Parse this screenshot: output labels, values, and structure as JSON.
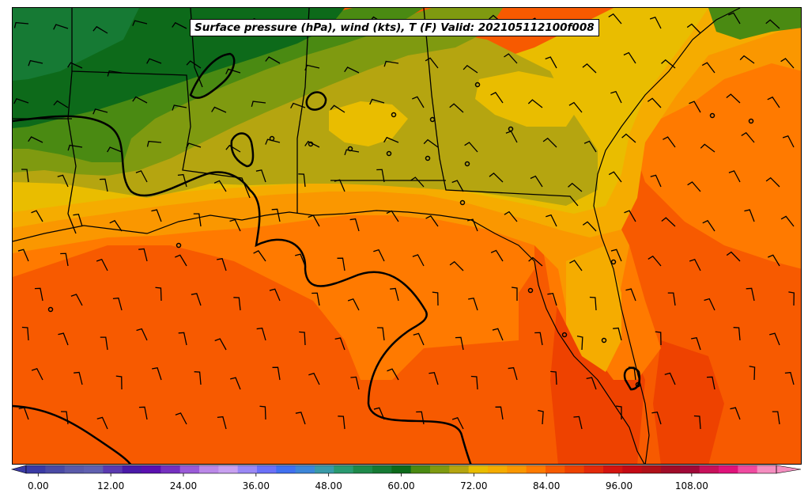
{
  "title": "Surface pressure (hPa), wind (kts), T (F) Valid: 2021051121OOf008",
  "colorbar": {
    "min": -2,
    "max": 122,
    "step": 3,
    "tick_values": [
      0,
      12,
      24,
      36,
      48,
      60,
      72,
      84,
      96,
      108
    ],
    "tick_labels": [
      "0.00",
      "12.00",
      "24.00",
      "36.00",
      "48.00",
      "60.00",
      "72.00",
      "84.00",
      "96.00",
      "108.00"
    ],
    "colors": [
      "#3a3aa5",
      "#4a4aa5",
      "#5a5aaa",
      "#6060b0",
      "#5a3ab0",
      "#4a1aa8",
      "#5a10b0",
      "#7530c0",
      "#9a5ad8",
      "#bb88e8",
      "#c8a0f0",
      "#9a88f5",
      "#6b70f8",
      "#4070f0",
      "#3d86d8",
      "#3a9aa8",
      "#2a9a70",
      "#1e8a4a",
      "#167a34",
      "#0d6a1a",
      "#4a8a12",
      "#7f9a10",
      "#b5a510",
      "#e9bd00",
      "#f5ac00",
      "#fa9700",
      "#ff7a00",
      "#f75a00",
      "#ee4200",
      "#e32a0a",
      "#d41410",
      "#c40a14",
      "#b01018",
      "#a00c28",
      "#a00838",
      "#c8105a",
      "#e0127a",
      "#f04aa0",
      "#f58ec0"
    ]
  },
  "map": {
    "field": "surface temperature (F)",
    "temperature_band_colors": {
      "gt_90": "#f75a00",
      "87_90": "#ff7a00",
      "84_87": "#fa9700",
      "81_84": "#f5ac00",
      "78_81": "#e9bd00",
      "75_78": "#b5a510",
      "72_75": "#7f9a10",
      "69_72": "#4a8a12",
      "lt_69": "#0d6a1a"
    },
    "land_temperature_shading_only": true,
    "isobar_color": "#000000",
    "boundary_color": "#000000",
    "wind_barb_color": "#000000"
  }
}
